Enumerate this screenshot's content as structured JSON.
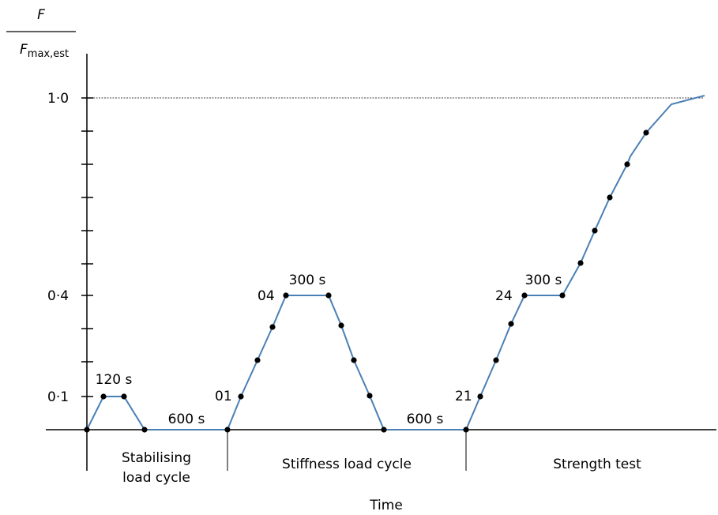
{
  "y_axis": {
    "label_numerator": "F",
    "label_denominator_main": "F",
    "label_denominator_sub": "max,est",
    "ticks": [
      "1·0",
      "0·4",
      "0·1"
    ]
  },
  "x_axis": {
    "label": "Time"
  },
  "phases": [
    {
      "line1": "Stabilising",
      "line2": "load cycle"
    },
    {
      "line1": "Stiffness load cycle"
    },
    {
      "line1": "Strength test"
    }
  ],
  "annotations": {
    "hold_120": "120 s",
    "hold_600_a": "600 s",
    "hold_300_a": "300 s",
    "hold_600_b": "600 s",
    "hold_300_b": "300 s",
    "pt_01": "01",
    "pt_04": "04",
    "pt_21": "21",
    "pt_24": "24"
  },
  "colors": {
    "curve": "#4a7fb5",
    "axis": "#000000",
    "reference_line": "#000000"
  }
}
